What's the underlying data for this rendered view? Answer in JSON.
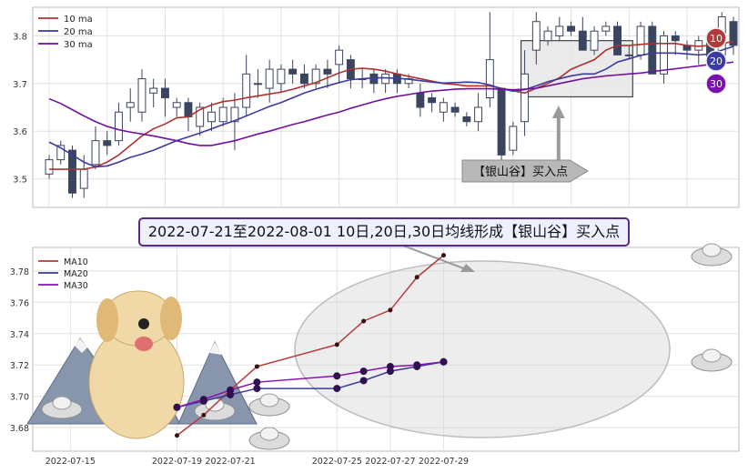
{
  "top_chart": {
    "legend": [
      {
        "label": "10 ma",
        "color": "#b03030"
      },
      {
        "label": "20 ma",
        "color": "#3a3aa0"
      },
      {
        "label": "30 ma",
        "color": "#7010a0"
      }
    ],
    "badges": [
      {
        "label": "10",
        "color": "#b03a3a"
      },
      {
        "label": "20",
        "color": "#3a3aa8"
      },
      {
        "label": "30",
        "color": "#7a10b0"
      }
    ],
    "y_ticks": [
      "3.5",
      "3.6",
      "3.7",
      "3.8"
    ],
    "arrow_label": "【银山谷】买入点"
  },
  "headline": "2022-07-21至2022-08-01 10日,20日,30日均线形成【银山谷】买入点",
  "chart_data": [
    {
      "type": "candlestick",
      "title": "",
      "ylim": [
        3.44,
        3.86
      ],
      "y_ticks": [
        3.5,
        3.6,
        3.7,
        3.8
      ],
      "candles": [
        [
          3.51,
          3.54,
          3.5,
          3.55
        ],
        [
          3.54,
          3.57,
          3.53,
          3.58
        ],
        [
          3.56,
          3.47,
          3.46,
          3.57
        ],
        [
          3.48,
          3.52,
          3.46,
          3.55
        ],
        [
          3.53,
          3.58,
          3.52,
          3.61
        ],
        [
          3.58,
          3.57,
          3.55,
          3.6
        ],
        [
          3.58,
          3.64,
          3.57,
          3.66
        ],
        [
          3.65,
          3.66,
          3.62,
          3.69
        ],
        [
          3.64,
          3.71,
          3.62,
          3.73
        ],
        [
          3.68,
          3.69,
          3.65,
          3.71
        ],
        [
          3.69,
          3.67,
          3.63,
          3.71
        ],
        [
          3.65,
          3.66,
          3.63,
          3.67
        ],
        [
          3.66,
          3.63,
          3.6,
          3.67
        ],
        [
          3.61,
          3.65,
          3.59,
          3.66
        ],
        [
          3.62,
          3.64,
          3.6,
          3.66
        ],
        [
          3.62,
          3.65,
          3.61,
          3.67
        ],
        [
          3.62,
          3.65,
          3.56,
          3.68
        ],
        [
          3.65,
          3.72,
          3.63,
          3.76
        ],
        [
          3.7,
          3.7,
          3.67,
          3.73
        ],
        [
          3.69,
          3.73,
          3.66,
          3.75
        ],
        [
          3.7,
          3.73,
          3.68,
          3.74
        ],
        [
          3.73,
          3.72,
          3.7,
          3.75
        ],
        [
          3.72,
          3.7,
          3.69,
          3.74
        ],
        [
          3.7,
          3.73,
          3.69,
          3.74
        ],
        [
          3.73,
          3.72,
          3.69,
          3.75
        ],
        [
          3.74,
          3.77,
          3.7,
          3.78
        ],
        [
          3.75,
          3.71,
          3.69,
          3.76
        ],
        [
          3.71,
          3.71,
          3.69,
          3.73
        ],
        [
          3.72,
          3.7,
          3.68,
          3.73
        ],
        [
          3.7,
          3.72,
          3.68,
          3.73
        ],
        [
          3.72,
          3.7,
          3.68,
          3.73
        ],
        [
          3.7,
          3.71,
          3.69,
          3.72
        ],
        [
          3.68,
          3.65,
          3.63,
          3.7
        ],
        [
          3.67,
          3.66,
          3.64,
          3.68
        ],
        [
          3.64,
          3.66,
          3.62,
          3.67
        ],
        [
          3.65,
          3.64,
          3.63,
          3.66
        ],
        [
          3.63,
          3.62,
          3.61,
          3.64
        ],
        [
          3.62,
          3.65,
          3.6,
          3.68
        ],
        [
          3.67,
          3.75,
          3.65,
          3.85
        ],
        [
          3.69,
          3.55,
          3.54,
          3.69
        ],
        [
          3.56,
          3.61,
          3.55,
          3.62
        ],
        [
          3.62,
          3.72,
          3.59,
          3.77
        ],
        [
          3.77,
          3.83,
          3.74,
          3.85
        ],
        [
          3.79,
          3.81,
          3.78,
          3.82
        ],
        [
          3.8,
          3.82,
          3.79,
          3.84
        ],
        [
          3.82,
          3.81,
          3.8,
          3.83
        ],
        [
          3.81,
          3.77,
          3.77,
          3.84
        ],
        [
          3.77,
          3.81,
          3.76,
          3.82
        ],
        [
          3.81,
          3.82,
          3.8,
          3.83
        ],
        [
          3.82,
          3.76,
          3.76,
          3.83
        ],
        [
          3.76,
          3.76,
          3.75,
          3.78
        ],
        [
          3.76,
          3.82,
          3.75,
          3.83
        ],
        [
          3.82,
          3.72,
          3.72,
          3.83
        ],
        [
          3.72,
          3.8,
          3.7,
          3.81
        ],
        [
          3.8,
          3.79,
          3.76,
          3.81
        ],
        [
          3.78,
          3.77,
          3.75,
          3.79
        ],
        [
          3.77,
          3.79,
          3.74,
          3.8
        ],
        [
          3.79,
          3.75,
          3.74,
          3.8
        ],
        [
          3.76,
          3.84,
          3.75,
          3.85
        ],
        [
          3.83,
          3.78,
          3.76,
          3.84
        ]
      ],
      "series": [
        {
          "name": "10 ma",
          "values": [
            3.52,
            3.52,
            3.52,
            3.52,
            3.525,
            3.535,
            3.55,
            3.57,
            3.59,
            3.605,
            3.615,
            3.628,
            3.63,
            3.645,
            3.655,
            3.662,
            3.665,
            3.67,
            3.674,
            3.678,
            3.682,
            3.688,
            3.695,
            3.702,
            3.712,
            3.722,
            3.73,
            3.732,
            3.73,
            3.726,
            3.72,
            3.715,
            3.71,
            3.705,
            3.7,
            3.698,
            3.695,
            3.695,
            3.695,
            3.69,
            3.685,
            3.68,
            3.69,
            3.7,
            3.712,
            3.73,
            3.74,
            3.75,
            3.77,
            3.78,
            3.78,
            3.782,
            3.784,
            3.784,
            3.784,
            3.78,
            3.778,
            3.78,
            3.784,
            3.788
          ]
        },
        {
          "name": "20 ma",
          "values": [
            3.577,
            3.565,
            3.55,
            3.535,
            3.525,
            3.527,
            3.535,
            3.545,
            3.552,
            3.56,
            3.57,
            3.58,
            3.588,
            3.596,
            3.605,
            3.614,
            3.622,
            3.632,
            3.642,
            3.652,
            3.66,
            3.67,
            3.68,
            3.688,
            3.695,
            3.702,
            3.708,
            3.71,
            3.712,
            3.712,
            3.711,
            3.709,
            3.706,
            3.703,
            3.701,
            3.702,
            3.703,
            3.702,
            3.697,
            3.689,
            3.684,
            3.687,
            3.695,
            3.704,
            3.71,
            3.716,
            3.72,
            3.72,
            3.73,
            3.745,
            3.752,
            3.759,
            3.764,
            3.764,
            3.764,
            3.762,
            3.76,
            3.762,
            3.77,
            3.778
          ]
        },
        {
          "name": "30 ma",
          "values": [
            3.668,
            3.658,
            3.645,
            3.632,
            3.62,
            3.61,
            3.603,
            3.598,
            3.594,
            3.59,
            3.585,
            3.58,
            3.574,
            3.57,
            3.57,
            3.575,
            3.58,
            3.587,
            3.594,
            3.6,
            3.607,
            3.614,
            3.62,
            3.627,
            3.634,
            3.64,
            3.648,
            3.655,
            3.662,
            3.668,
            3.673,
            3.677,
            3.681,
            3.684,
            3.686,
            3.688,
            3.689,
            3.689,
            3.689,
            3.688,
            3.687,
            3.688,
            3.69,
            3.695,
            3.7,
            3.705,
            3.71,
            3.713,
            3.716,
            3.718,
            3.72,
            3.722,
            3.725,
            3.728,
            3.731,
            3.734,
            3.737,
            3.74,
            3.742,
            3.745
          ]
        }
      ],
      "highlight_range": {
        "start_index": 41,
        "end_index": 50,
        "low": 3.672,
        "high": 3.79
      }
    },
    {
      "type": "line",
      "title": "",
      "xlabel": "",
      "ylabel": "",
      "x_ticks": [
        "2022-07-15",
        "2022-07-19",
        "2022-07-21",
        "2022-07-25",
        "2022-07-27",
        "2022-07-29"
      ],
      "y_ticks": [
        3.68,
        3.7,
        3.72,
        3.74,
        3.76,
        3.78
      ],
      "ylim": [
        3.665,
        3.795
      ],
      "x": [
        "2022-07-19",
        "2022-07-20",
        "2022-07-21",
        "2022-07-22",
        "2022-07-25",
        "2022-07-26",
        "2022-07-27",
        "2022-07-28",
        "2022-07-29",
        "2022-08-01"
      ],
      "series": [
        {
          "name": "MA10",
          "color": "#b83a3a",
          "values": [
            3.675,
            3.688,
            3.704,
            3.719,
            3.733,
            3.748,
            3.755,
            3.776,
            3.79,
            null
          ]
        },
        {
          "name": "MA20",
          "color": "#3a3a98",
          "values": [
            3.693,
            3.697,
            3.701,
            3.705,
            3.705,
            3.71,
            3.716,
            3.719,
            3.722,
            null
          ]
        },
        {
          "name": "MA30",
          "color": "#8a10b0",
          "values": [
            3.693,
            3.698,
            3.704,
            3.709,
            3.713,
            3.716,
            3.719,
            3.72,
            3.722,
            null
          ]
        }
      ],
      "legend": [
        "MA10",
        "MA20",
        "MA30"
      ]
    }
  ]
}
